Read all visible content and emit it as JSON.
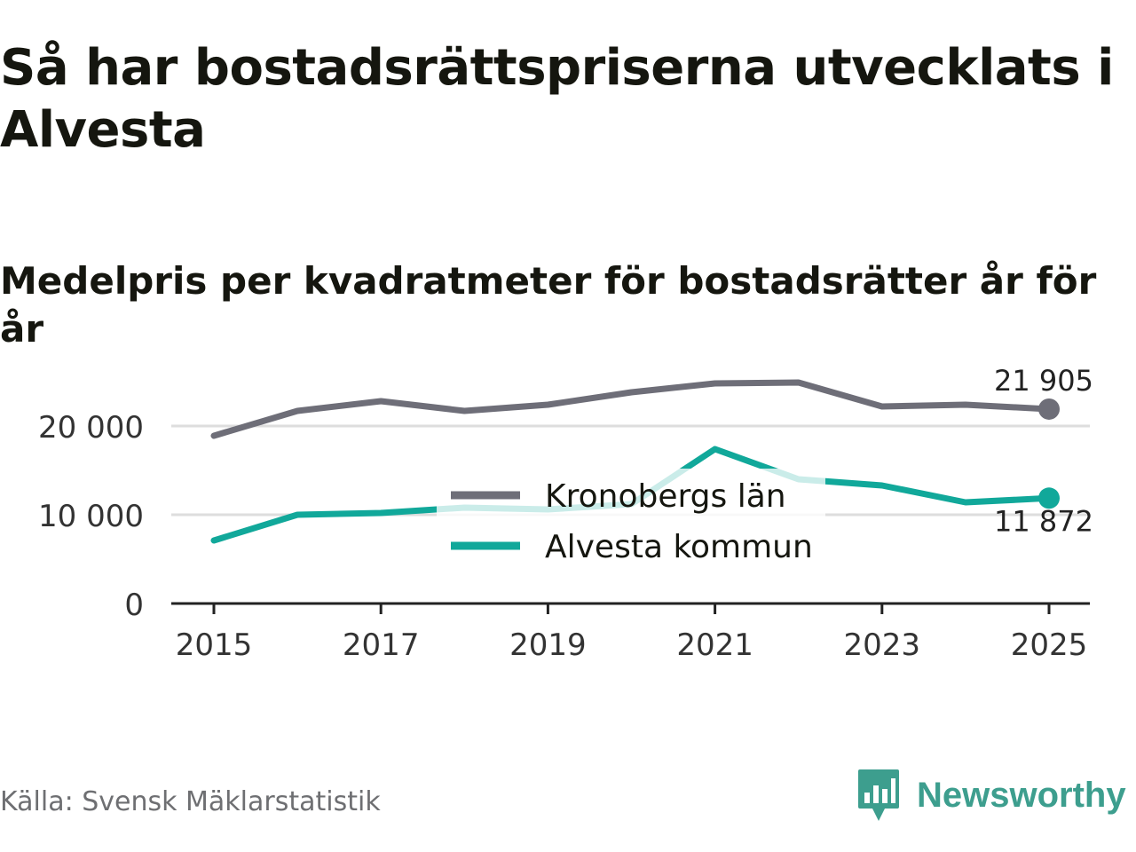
{
  "title": "Så har bostadsrättspriserna utvecklats i Alvesta",
  "subtitle": "Medelpris per kvadratmeter för bostadsrätter år för år",
  "source": "Källa: Svensk Mäklarstatistik",
  "brand": {
    "name": "Newsworthy",
    "icon": "newsworthy-logo-icon"
  },
  "colors": {
    "grey_series": "#6e6e78",
    "teal_series": "#11a89a",
    "grid": "#dddddd",
    "axis": "#222222",
    "text": "#15160f",
    "muted": "#6e6f72",
    "brand": "#3d9e8e"
  },
  "chart_data": {
    "type": "line",
    "title": "Så har bostadsrättspriserna utvecklats i Alvesta",
    "subtitle": "Medelpris per kvadratmeter för bostadsrätter år för år",
    "xlabel": "",
    "ylabel": "",
    "x": [
      2015,
      2016,
      2017,
      2018,
      2019,
      2020,
      2021,
      2022,
      2023,
      2024,
      2025
    ],
    "xlim": [
      2015,
      2025
    ],
    "ylim": [
      0,
      25000
    ],
    "x_ticks": [
      2015,
      2017,
      2019,
      2021,
      2023,
      2025
    ],
    "x_tick_labels": [
      "2015",
      "2017",
      "2019",
      "2021",
      "2023",
      "2025"
    ],
    "y_ticks": [
      0,
      10000,
      20000
    ],
    "y_tick_labels": [
      "0",
      "10 000",
      "20 000"
    ],
    "grid": true,
    "legend_position": "center",
    "series": [
      {
        "name": "Kronobergs län",
        "color": "#6e6e78",
        "values": [
          18900,
          21700,
          22800,
          21700,
          22400,
          23800,
          24800,
          24900,
          22200,
          22400,
          21905
        ],
        "end_label": "21 905"
      },
      {
        "name": "Alvesta kommun",
        "color": "#11a89a",
        "values": [
          7100,
          10000,
          10200,
          10800,
          10600,
          11200,
          17400,
          14000,
          13300,
          11400,
          11872
        ],
        "end_label": "11 872"
      }
    ]
  }
}
